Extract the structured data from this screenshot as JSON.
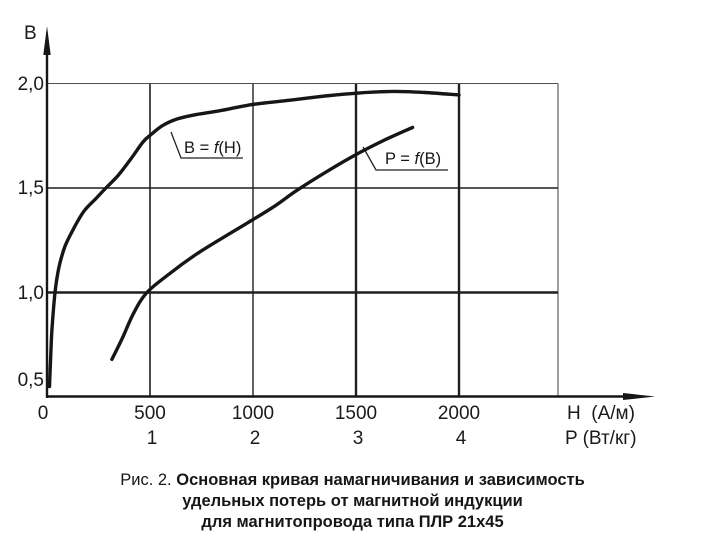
{
  "figure": {
    "y_axis_label": "B",
    "x_axis_label_1": "H  (А/м)",
    "x_axis_label_2": "P (Вт/кг)"
  },
  "axes": {
    "b_ticks": [
      {
        "value": 0.5,
        "label": "0,5"
      },
      {
        "value": 1.0,
        "label": "1,0"
      },
      {
        "value": 1.5,
        "label": "1,5"
      },
      {
        "value": 2.0,
        "label": "2,0"
      }
    ],
    "h_ticks": [
      {
        "value": 0,
        "label": "0"
      },
      {
        "value": 500,
        "label": "500"
      },
      {
        "value": 1000,
        "label": "1000"
      },
      {
        "value": 1500,
        "label": "1500"
      },
      {
        "value": 2000,
        "label": "2000"
      }
    ],
    "p_ticks": [
      {
        "value": 1,
        "label": "1"
      },
      {
        "value": 2,
        "label": "2"
      },
      {
        "value": 3,
        "label": "3"
      },
      {
        "value": 4,
        "label": "4"
      }
    ]
  },
  "curve_labels": {
    "b_curve": {
      "pre": "B = ",
      "f": "f",
      "post": "(H)"
    },
    "p_curve": {
      "pre": "P = ",
      "f": "f",
      "post": "(B)"
    }
  },
  "caption": {
    "prefix": "Рис. 2.",
    "line1": "Основная кривая намагничивания и зависимость",
    "line2": "удельных потерь от магнитной  индукции",
    "line3": "для магнитопровода типа ПЛР 21x45"
  },
  "colors": {
    "ink": "#161616",
    "grid": "#1f1f1f",
    "grid_light": "#505050",
    "background": "#ffffff"
  },
  "chart_data": {
    "type": "line",
    "title": "Рис. 2. Основная кривая намагничивания и зависимость удельных потерь от магнитной индукции для магнитопровода типа ПЛР 21x45",
    "ylabel": "B",
    "ylim": [
      0.5,
      2.05
    ],
    "grid": true,
    "x_axes": [
      {
        "label": "H (А/м)",
        "ticks": [
          0,
          500,
          1000,
          1500,
          2000
        ],
        "range": [
          0,
          2480
        ]
      },
      {
        "label": "P (Вт/кг)",
        "ticks": [
          1,
          2,
          3,
          4
        ],
        "note": "shared bottom axis, P = H/500"
      }
    ],
    "series": [
      {
        "name": "B = f(H)",
        "x_unit": "А/м",
        "points": [
          [
            12,
            0.55
          ],
          [
            17,
            0.67
          ],
          [
            24,
            0.82
          ],
          [
            39,
            1.0
          ],
          [
            58,
            1.12
          ],
          [
            87,
            1.22
          ],
          [
            126,
            1.3
          ],
          [
            180,
            1.39
          ],
          [
            238,
            1.45
          ],
          [
            286,
            1.5
          ],
          [
            345,
            1.56
          ],
          [
            408,
            1.64
          ],
          [
            466,
            1.72
          ],
          [
            510,
            1.76
          ],
          [
            563,
            1.8
          ],
          [
            631,
            1.83
          ],
          [
            718,
            1.85
          ],
          [
            840,
            1.87
          ],
          [
            1000,
            1.9
          ],
          [
            1180,
            1.92
          ],
          [
            1349,
            1.94
          ],
          [
            1519,
            1.955
          ],
          [
            1689,
            1.962
          ],
          [
            1835,
            1.957
          ],
          [
            2000,
            1.945
          ]
        ]
      },
      {
        "name": "P = f(B)",
        "x_unit": "Вт/кг",
        "points": [
          [
            0.63,
            0.68
          ],
          [
            0.73,
            0.78
          ],
          [
            0.84,
            0.9
          ],
          [
            0.97,
            1.0
          ],
          [
            1.19,
            1.09
          ],
          [
            1.44,
            1.18
          ],
          [
            1.7,
            1.26
          ],
          [
            1.97,
            1.34
          ],
          [
            2.2,
            1.41
          ],
          [
            2.43,
            1.49
          ],
          [
            2.72,
            1.58
          ],
          [
            3.0,
            1.66
          ],
          [
            3.28,
            1.73
          ],
          [
            3.55,
            1.79
          ]
        ]
      }
    ]
  }
}
